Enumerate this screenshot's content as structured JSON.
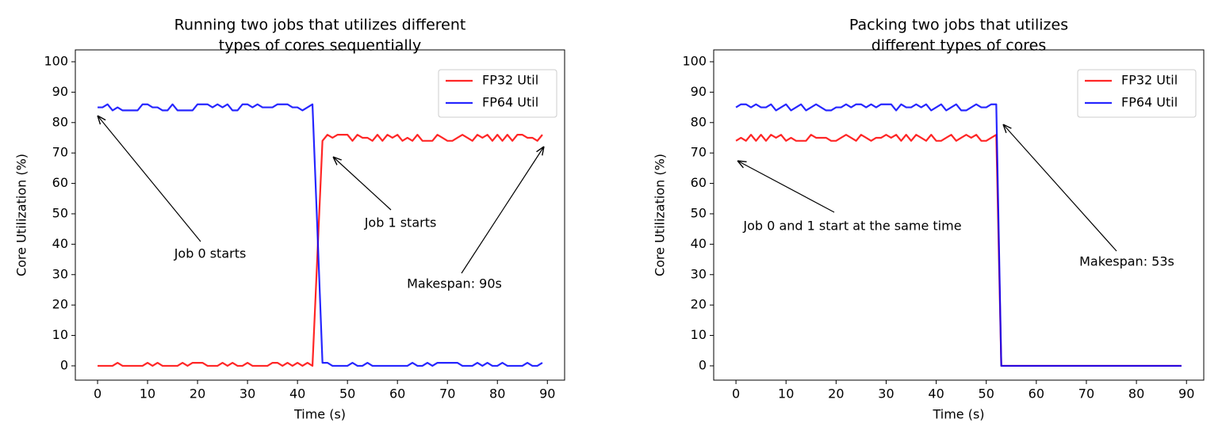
{
  "chart_data": [
    {
      "type": "line",
      "title": [
        "Running two jobs that utilizes different",
        "types of cores sequentially"
      ],
      "x_label": "Time (s)",
      "y_label": "Core Utilization (%)",
      "x": [
        0,
        1,
        2,
        3,
        4,
        5,
        6,
        7,
        8,
        9,
        10,
        11,
        12,
        13,
        14,
        15,
        16,
        17,
        18,
        19,
        20,
        21,
        22,
        23,
        24,
        25,
        26,
        27,
        28,
        29,
        30,
        31,
        32,
        33,
        34,
        35,
        36,
        37,
        38,
        39,
        40,
        41,
        42,
        43,
        44,
        45,
        46,
        47,
        48,
        49,
        50,
        51,
        52,
        53,
        54,
        55,
        56,
        57,
        58,
        59,
        60,
        61,
        62,
        63,
        64,
        65,
        66,
        67,
        68,
        69,
        70,
        71,
        72,
        73,
        74,
        75,
        76,
        77,
        78,
        79,
        80,
        81,
        82,
        83,
        84,
        85,
        86,
        87,
        88,
        89
      ],
      "series": [
        {
          "name": "FP32 Util",
          "color": "#ff0000",
          "values": [
            0,
            0,
            0,
            0,
            1,
            0,
            0,
            0,
            0,
            0,
            1,
            0,
            1,
            0,
            0,
            0,
            0,
            1,
            0,
            1,
            1,
            1,
            0,
            0,
            0,
            1,
            0,
            1,
            0,
            0,
            1,
            0,
            0,
            0,
            0,
            1,
            1,
            0,
            1,
            0,
            1,
            0,
            1,
            0,
            37,
            74,
            76,
            75,
            76,
            76,
            76,
            74,
            76,
            75,
            75,
            74,
            76,
            74,
            76,
            75,
            76,
            74,
            75,
            74,
            76,
            74,
            74,
            74,
            76,
            75,
            74,
            74,
            75,
            76,
            75,
            74,
            76,
            75,
            76,
            74,
            76,
            74,
            76,
            74,
            76,
            76,
            75,
            75,
            74,
            76
          ]
        },
        {
          "name": "FP64 Util",
          "color": "#0000ff",
          "values": [
            85,
            85,
            86,
            84,
            85,
            84,
            84,
            84,
            84,
            86,
            86,
            85,
            85,
            84,
            84,
            86,
            84,
            84,
            84,
            84,
            86,
            86,
            86,
            85,
            86,
            85,
            86,
            84,
            84,
            86,
            86,
            85,
            86,
            85,
            85,
            85,
            86,
            86,
            86,
            85,
            85,
            84,
            85,
            86,
            44,
            1,
            1,
            0,
            0,
            0,
            0,
            1,
            0,
            0,
            1,
            0,
            0,
            0,
            0,
            0,
            0,
            0,
            0,
            1,
            0,
            0,
            1,
            0,
            1,
            1,
            1,
            1,
            1,
            0,
            0,
            0,
            1,
            0,
            1,
            0,
            0,
            1,
            0,
            0,
            0,
            0,
            1,
            0,
            0,
            1
          ]
        }
      ],
      "xlim": [
        -4.45,
        93.45
      ],
      "ylim": [
        -4.7,
        103.9
      ],
      "xticks": [
        0,
        10,
        20,
        30,
        40,
        50,
        60,
        70,
        80,
        90
      ],
      "yticks": [
        0,
        10,
        20,
        30,
        40,
        50,
        60,
        70,
        80,
        90,
        100
      ],
      "legend": "upper right",
      "annotations": [
        "Job 0 starts",
        "Job 1 starts",
        "Makespan: 90s"
      ]
    },
    {
      "type": "line",
      "title": [
        "Packing two jobs that utilizes",
        "different types of cores"
      ],
      "x_label": "Time (s)",
      "y_label": "Core Utilization (%)",
      "x": [
        0,
        1,
        2,
        3,
        4,
        5,
        6,
        7,
        8,
        9,
        10,
        11,
        12,
        13,
        14,
        15,
        16,
        17,
        18,
        19,
        20,
        21,
        22,
        23,
        24,
        25,
        26,
        27,
        28,
        29,
        30,
        31,
        32,
        33,
        34,
        35,
        36,
        37,
        38,
        39,
        40,
        41,
        42,
        43,
        44,
        45,
        46,
        47,
        48,
        49,
        50,
        51,
        52,
        53,
        54,
        55,
        56,
        57,
        58,
        59,
        60,
        61,
        62,
        63,
        64,
        65,
        66,
        67,
        68,
        69,
        70,
        71,
        72,
        73,
        74,
        75,
        76,
        77,
        78,
        79,
        80,
        81,
        82,
        83,
        84,
        85,
        86,
        87,
        88,
        89
      ],
      "series": [
        {
          "name": "FP32 Util",
          "color": "#ff0000",
          "values": [
            74,
            75,
            74,
            76,
            74,
            76,
            74,
            76,
            75,
            76,
            74,
            75,
            74,
            74,
            74,
            76,
            75,
            75,
            75,
            74,
            74,
            75,
            76,
            75,
            74,
            76,
            75,
            74,
            75,
            75,
            76,
            75,
            76,
            74,
            76,
            74,
            76,
            75,
            74,
            76,
            74,
            74,
            75,
            76,
            74,
            75,
            76,
            75,
            76,
            74,
            74,
            75,
            76,
            0,
            0,
            0,
            0,
            0,
            0,
            0,
            0,
            0,
            0,
            0,
            0,
            0,
            0,
            0,
            0,
            0,
            0,
            0,
            0,
            0,
            0,
            0,
            0,
            0,
            0,
            0,
            0,
            0,
            0,
            0,
            0,
            0,
            0,
            0,
            0,
            0
          ]
        },
        {
          "name": "FP64 Util",
          "color": "#0000ff",
          "values": [
            85,
            86,
            86,
            85,
            86,
            85,
            85,
            86,
            84,
            85,
            86,
            84,
            85,
            86,
            84,
            85,
            86,
            85,
            84,
            84,
            85,
            85,
            86,
            85,
            86,
            86,
            85,
            86,
            85,
            86,
            86,
            86,
            84,
            86,
            85,
            85,
            86,
            85,
            86,
            84,
            85,
            86,
            84,
            85,
            86,
            84,
            84,
            85,
            86,
            85,
            85,
            86,
            86,
            0,
            0,
            0,
            0,
            0,
            0,
            0,
            0,
            0,
            0,
            0,
            0,
            0,
            0,
            0,
            0,
            0,
            0,
            0,
            0,
            0,
            0,
            0,
            0,
            0,
            0,
            0,
            0,
            0,
            0,
            0,
            0,
            0,
            0,
            0,
            0,
            0
          ]
        }
      ],
      "xlim": [
        -4.45,
        93.45
      ],
      "ylim": [
        -4.7,
        103.9
      ],
      "xticks": [
        0,
        10,
        20,
        30,
        40,
        50,
        60,
        70,
        80,
        90
      ],
      "yticks": [
        0,
        10,
        20,
        30,
        40,
        50,
        60,
        70,
        80,
        90,
        100
      ],
      "legend": "upper right",
      "annotations": [
        "Job 0 and 1 start at the same time",
        "Makespan: 53s"
      ]
    }
  ]
}
